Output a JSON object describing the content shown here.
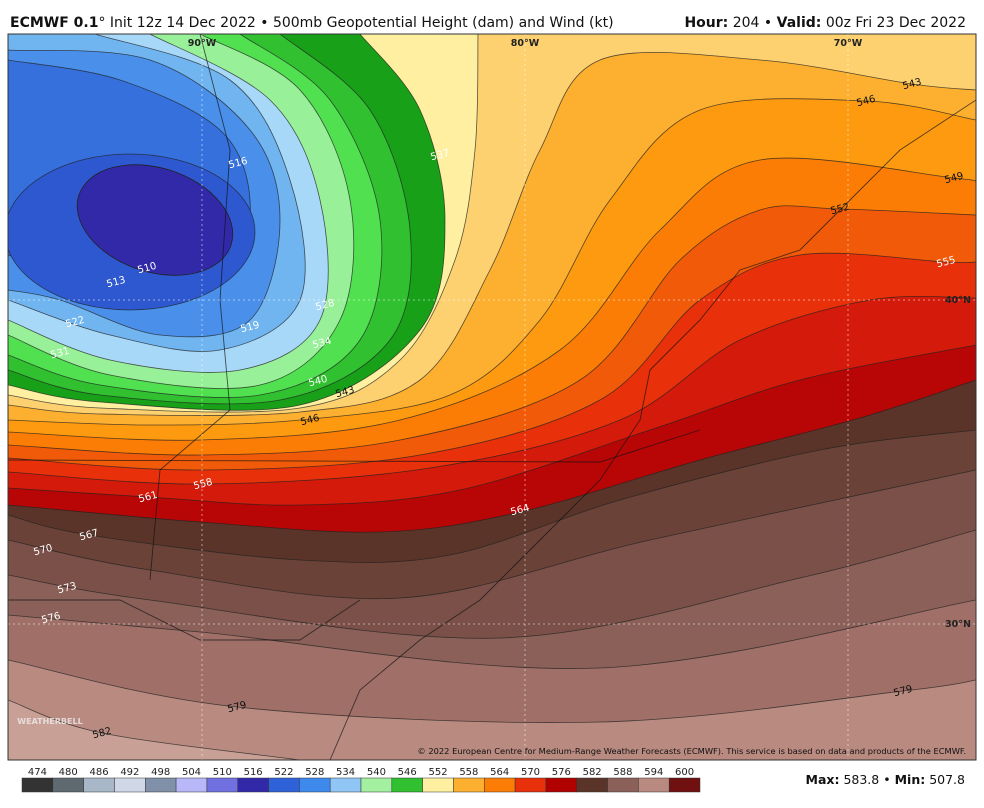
{
  "header": {
    "model": "ECMWF 0.1",
    "title_rest": "° Init 12z 14 Dec 2022 • 500mb Geopotential Height (dam) and Wind (kt)",
    "hour_label": "Hour:",
    "hour": "204",
    "separator": "•",
    "valid_label": "Valid:",
    "valid": "00z Fri 23 Dec 2022"
  },
  "map": {
    "contour_labels": [
      "516",
      "510",
      "513",
      "519",
      "522",
      "528",
      "534",
      "531",
      "537",
      "540",
      "543",
      "546",
      "546",
      "543",
      "549",
      "552",
      "555",
      "558",
      "561",
      "564",
      "567",
      "570",
      "573",
      "576",
      "579",
      "579",
      "582"
    ],
    "grid_labels": [
      "90°W",
      "80°W",
      "70°W",
      "40°N",
      "30°N"
    ],
    "copyright": "© 2022 European Centre for Medium-Range Weather Forecasts (ECMWF). This service is based on data and products of the ECMWF.",
    "logo": "WEATHERBELL"
  },
  "colorbar": {
    "levels": [
      474,
      480,
      486,
      492,
      498,
      504,
      510,
      516,
      522,
      528,
      534,
      540,
      546,
      552,
      558,
      564,
      570,
      576,
      582,
      588,
      594,
      600
    ],
    "colors": [
      "#333333",
      "#5e6a70",
      "#a8b8c8",
      "#d0d8e8",
      "#8090a8",
      "#b8b8f8",
      "#7070e0",
      "#3229a9",
      "#2f62d8",
      "#3d8aec",
      "#8fc6f5",
      "#a3f0a0",
      "#30c030",
      "#fef0a0",
      "#fdb030",
      "#fb7d05",
      "#e8300a",
      "#b00000",
      "#5a3428",
      "#8a6058",
      "#b88a80",
      "#701010"
    ]
  },
  "footer": {
    "max_label": "Max:",
    "max": "583.8",
    "separator": "•",
    "min_label": "Min:",
    "min": "507.8"
  }
}
